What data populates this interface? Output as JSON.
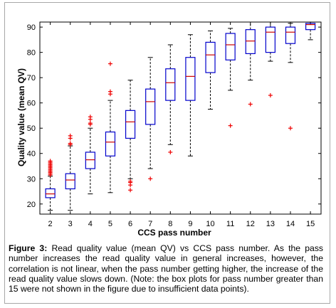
{
  "caption": {
    "label": "Figure 3:",
    "text": " Read quality value (mean QV) vs CCS pass number. As the pass number increases the read quality value in general increases, however, the correlation is not linear, when the pass number getting higher, the increase of the read quality value slows down. (Note: the box plots for pass number greater than 15 were not shown in the figure due to insufficient data points)."
  },
  "chart_data": {
    "type": "box",
    "xlabel": "CCS pass number",
    "ylabel": "Quality value (mean QV)",
    "ylim": [
      16,
      92
    ],
    "yticks": [
      20,
      30,
      40,
      50,
      60,
      70,
      80,
      90
    ],
    "grid": false,
    "colors": {
      "box": "#0000cc",
      "median": "#cc0000",
      "whisker": "#000000",
      "outlier": "#ee0000"
    },
    "categories": [
      "2",
      "3",
      "4",
      "5",
      "6",
      "7",
      "8",
      "9",
      "10",
      "11",
      "12",
      "13",
      "14",
      "15"
    ],
    "boxes": [
      {
        "x": "2",
        "min": 17.5,
        "q1": 22.5,
        "median": 24,
        "q3": 26,
        "max": 31,
        "outliers": [
          31.5,
          32,
          32.5,
          33,
          33.5,
          34,
          34.5,
          35,
          35.5,
          36,
          36.5,
          37
        ]
      },
      {
        "x": "3",
        "min": 17.5,
        "q1": 26,
        "median": 29.5,
        "q3": 32,
        "max": 43,
        "outliers": [
          43.5,
          44,
          46,
          47
        ]
      },
      {
        "x": "4",
        "min": 24,
        "q1": 34,
        "median": 37.5,
        "q3": 40.5,
        "max": 50,
        "outliers": [
          51.5,
          52,
          53.5,
          54.5
        ]
      },
      {
        "x": "5",
        "min": 24.5,
        "q1": 39,
        "median": 44.5,
        "q3": 48.5,
        "max": 61,
        "outliers": [
          63.5,
          64.5,
          75.5
        ]
      },
      {
        "x": "6",
        "min": 30,
        "q1": 46,
        "median": 52.5,
        "q3": 57,
        "max": 69,
        "outliers": [
          25.5,
          27.5,
          28.5,
          29
        ]
      },
      {
        "x": "7",
        "min": 34,
        "q1": 51.5,
        "median": 60.5,
        "q3": 65.5,
        "max": 78,
        "outliers": [
          30
        ]
      },
      {
        "x": "8",
        "min": 43.5,
        "q1": 61,
        "median": 68,
        "q3": 73.5,
        "max": 83,
        "outliers": [
          40.5
        ]
      },
      {
        "x": "9",
        "min": 39,
        "q1": 61,
        "median": 70.5,
        "q3": 78,
        "max": 87,
        "outliers": []
      },
      {
        "x": "10",
        "min": 57.5,
        "q1": 72,
        "median": 79,
        "q3": 84,
        "max": 88.5,
        "outliers": []
      },
      {
        "x": "11",
        "min": 65,
        "q1": 77,
        "median": 83,
        "q3": 87.5,
        "max": 89.5,
        "outliers": [
          51
        ]
      },
      {
        "x": "12",
        "min": 69,
        "q1": 79.5,
        "median": 84.5,
        "q3": 89,
        "max": 92,
        "outliers": [
          59.5
        ]
      },
      {
        "x": "13",
        "min": 76.5,
        "q1": 80,
        "median": 88,
        "q3": 90,
        "max": 92,
        "outliers": [
          63
        ]
      },
      {
        "x": "14",
        "min": 76,
        "q1": 83.5,
        "median": 88,
        "q3": 90,
        "max": 91.5,
        "outliers": [
          50
        ]
      },
      {
        "x": "15",
        "min": 85,
        "q1": 89,
        "median": 91,
        "q3": 91.5,
        "max": 92,
        "outliers": []
      }
    ]
  }
}
